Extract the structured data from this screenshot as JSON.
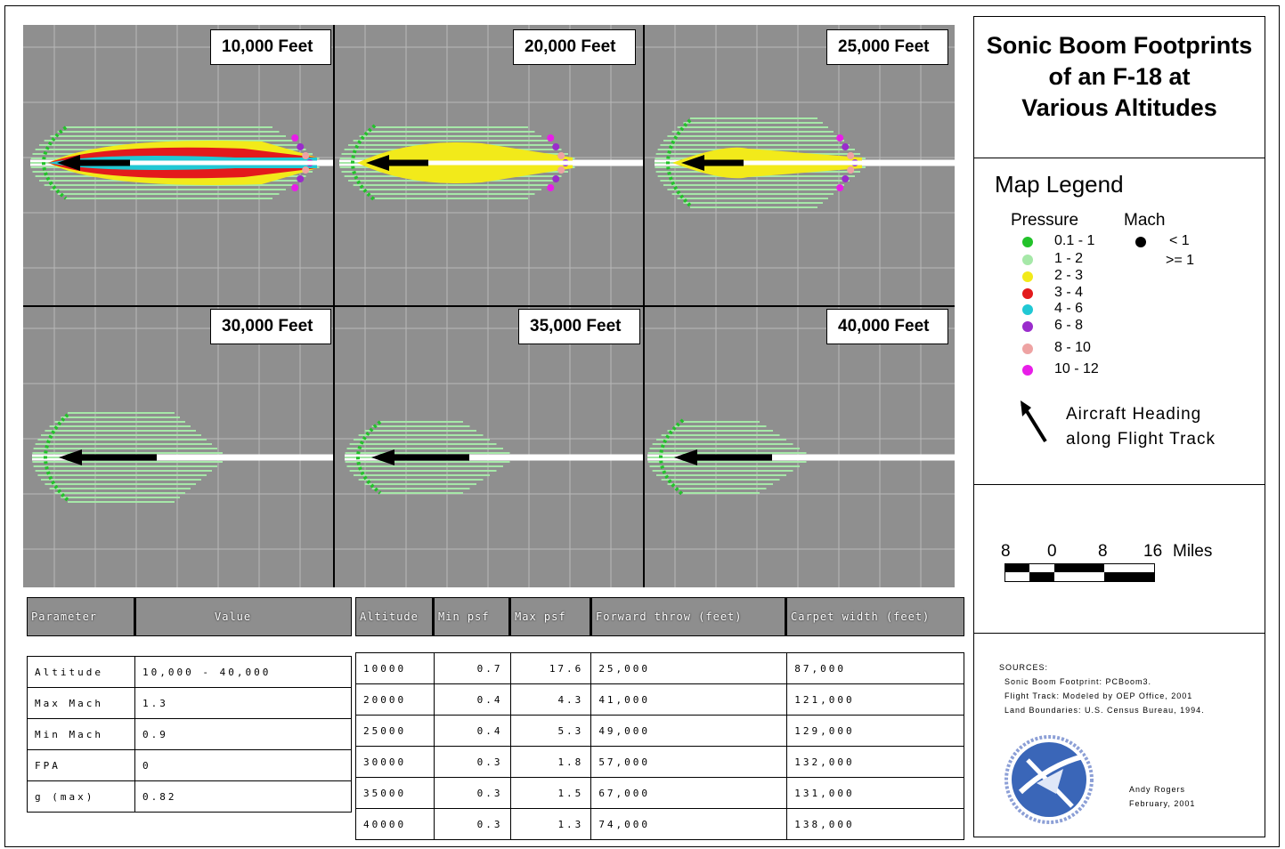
{
  "panels": [
    {
      "label": "10,000 Feet"
    },
    {
      "label": "20,000 Feet"
    },
    {
      "label": "25,000 Feet"
    },
    {
      "label": "30,000 Feet"
    },
    {
      "label": "35,000 Feet"
    },
    {
      "label": "40,000 Feet"
    }
  ],
  "title": {
    "line1": "Sonic Boom Footprints",
    "line2": "of an F-18 at",
    "line3": "Various Altitudes"
  },
  "legend": {
    "heading": "Map Legend",
    "pressure_heading": "Pressure",
    "mach_heading": "Mach",
    "pressure_items": [
      {
        "label": "0.1 - 1",
        "color": "#22c22a"
      },
      {
        "label": "1 - 2",
        "color": "#a6e8a8"
      },
      {
        "label": "2 - 3",
        "color": "#f2ea1a"
      },
      {
        "label": "3 - 4",
        "color": "#e31a1c"
      },
      {
        "label": "4 - 6",
        "color": "#20c8d4"
      },
      {
        "label": "6 - 8",
        "color": "#9a2ccc"
      },
      {
        "label": "8 - 10",
        "color": "#eea3a3"
      },
      {
        "label": "10 - 12",
        "color": "#e81ee8"
      }
    ],
    "mach_items": [
      {
        "label": "< 1"
      },
      {
        "label": ">= 1"
      }
    ],
    "heading_line1": "Aircraft Heading",
    "heading_line2": "along Flight Track"
  },
  "scale": {
    "ticks": [
      "8",
      "0",
      "8",
      "16"
    ],
    "unit": "Miles"
  },
  "sources": {
    "heading": "SOURCES:",
    "line1": "Sonic Boom Footprint: PCBoom3.",
    "line2": "Flight Track: Modeled by OEP Office, 2001",
    "line3": "Land Boundaries: U.S. Census Bureau, 1994.",
    "author": "Andy Rogers",
    "date": "February, 2001"
  },
  "param_table": {
    "headers": [
      "Parameter",
      "Value"
    ],
    "rows": [
      [
        "Altitude",
        "10,000 - 40,000"
      ],
      [
        "Max Mach",
        "1.3"
      ],
      [
        "Min Mach",
        "0.9"
      ],
      [
        "FPA",
        "0"
      ],
      [
        "g (max)",
        "0.82"
      ]
    ]
  },
  "alt_table": {
    "headers": [
      "Altitude",
      "Min psf",
      "Max psf",
      "Forward throw (feet)",
      "Carpet width (feet)"
    ],
    "rows": [
      [
        "10000",
        "0.7",
        "17.6",
        "25,000",
        "87,000"
      ],
      [
        "20000",
        "0.4",
        "4.3",
        "41,000",
        "121,000"
      ],
      [
        "25000",
        "0.4",
        "5.3",
        "49,000",
        "129,000"
      ],
      [
        "30000",
        "0.3",
        "1.8",
        "57,000",
        "132,000"
      ],
      [
        "35000",
        "0.3",
        "1.5",
        "67,000",
        "131,000"
      ],
      [
        "40000",
        "0.3",
        "1.3",
        "74,000",
        "138,000"
      ]
    ]
  }
}
